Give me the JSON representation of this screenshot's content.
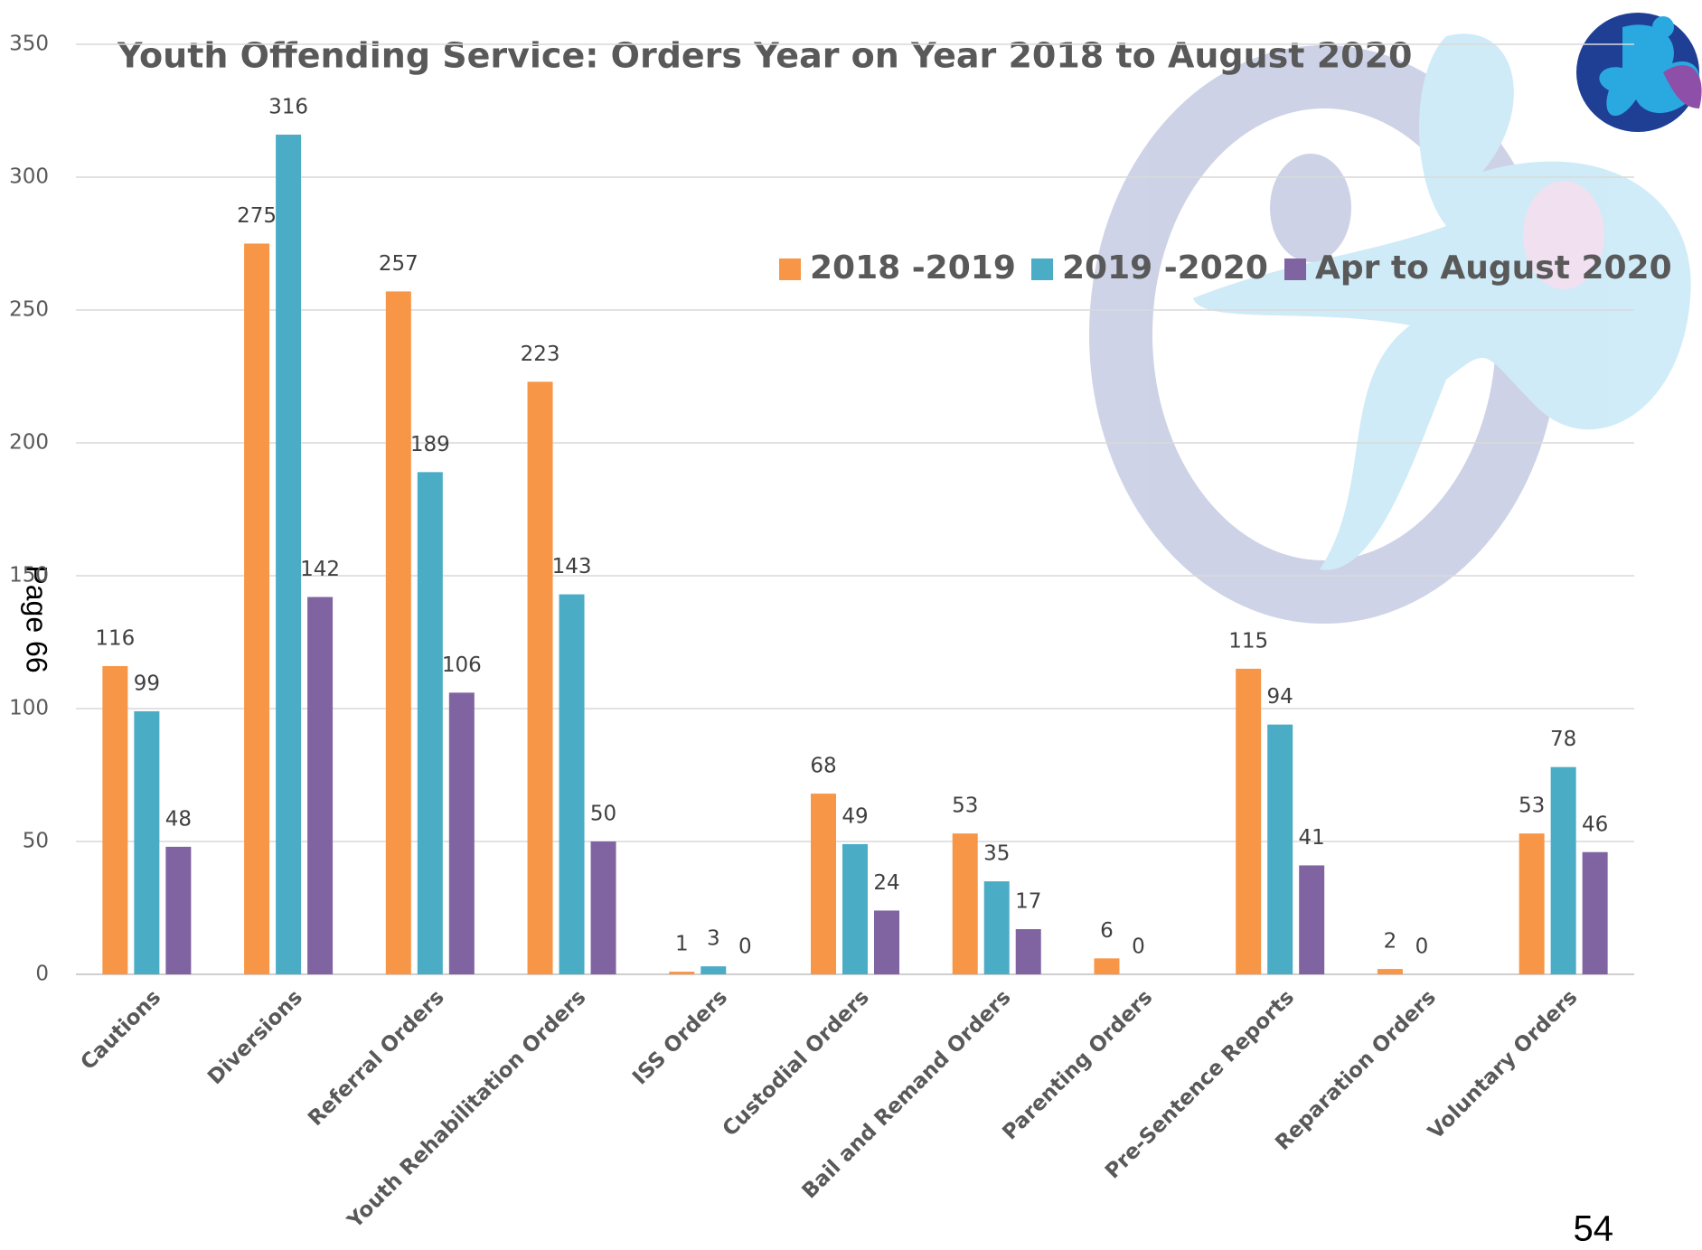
{
  "chart_data": {
    "type": "bar",
    "title": "Youth Offending Service: Orders Year on Year 2018 to August 2020",
    "categories": [
      "Cautions",
      "Diversions",
      "Referral Orders",
      "Youth Rehabilitation Orders",
      "ISS Orders",
      "Custodial Orders",
      "Bail and Remand Orders",
      "Parenting Orders",
      "Pre-Sentence Reports",
      "Reparation Orders",
      "Voluntary Orders"
    ],
    "series": [
      {
        "name": "2018 -2019",
        "color": "#f79646",
        "values": [
          116,
          275,
          257,
          223,
          1,
          68,
          53,
          6,
          115,
          2,
          53
        ]
      },
      {
        "name": "2019 -2020",
        "color": "#4bacc6",
        "values": [
          99,
          316,
          189,
          143,
          3,
          49,
          35,
          0,
          94,
          0,
          78
        ]
      },
      {
        "name": "Apr to August 2020",
        "color": "#8064a2",
        "values": [
          48,
          142,
          106,
          50,
          0,
          24,
          17,
          null,
          41,
          null,
          46
        ]
      }
    ],
    "ylim": [
      0,
      350
    ],
    "yticks": [
      0,
      50,
      100,
      150,
      200,
      250,
      300,
      350
    ],
    "grid": true,
    "legend": "top-right",
    "side_note": "Page 66",
    "page_number": "54"
  }
}
